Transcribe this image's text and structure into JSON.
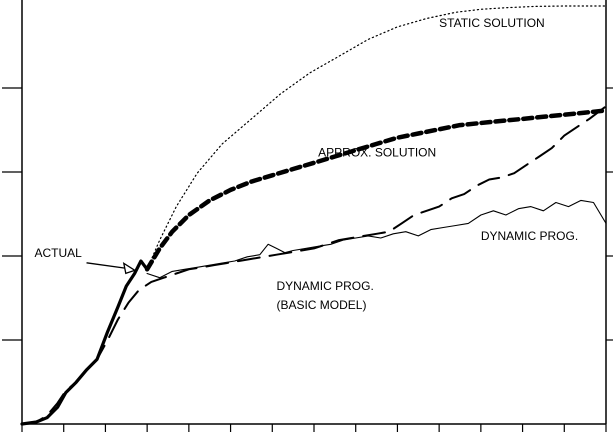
{
  "chart_data": {
    "type": "line",
    "title": "",
    "xlabel": "",
    "ylabel": "",
    "xlim": [
      0,
      14
    ],
    "ylim": [
      0,
      100
    ],
    "grid": false,
    "legend": "none",
    "series": [
      {
        "name": "ACTUAL",
        "style": "thick-solid",
        "x": [
          0,
          0.35,
          0.6,
          0.85,
          1.05,
          1.3,
          1.55,
          1.8,
          2.05,
          2.3,
          2.5,
          2.7,
          2.85,
          3.0
        ],
        "y": [
          0,
          0.5,
          1.5,
          4,
          7.5,
          10,
          13,
          15.5,
          22,
          28,
          33,
          36,
          39,
          37
        ]
      },
      {
        "name": "STATIC SOLUTION",
        "style": "dotted",
        "x": [
          3.0,
          3.3,
          3.7,
          4.2,
          4.8,
          5.5,
          6.2,
          6.9,
          7.6,
          8.3,
          9.0,
          9.7,
          10.4,
          11.0,
          11.6,
          12.3,
          13.0,
          14.0
        ],
        "y": [
          37,
          44,
          52,
          60,
          67,
          73,
          79,
          84,
          88,
          92,
          95,
          97,
          98.5,
          99.2,
          99.6,
          99.9,
          100,
          100
        ]
      },
      {
        "name": "APPROX. SOLUTION",
        "style": "thick-dashed",
        "x": [
          3.0,
          3.3,
          3.6,
          4.0,
          4.5,
          5.0,
          5.5,
          6.0,
          6.5,
          7.0,
          7.5,
          8.0,
          8.5,
          9.0,
          9.5,
          10.0,
          10.5,
          11.0,
          11.5,
          12.0,
          12.5,
          13.0,
          13.5,
          14.0
        ],
        "y": [
          37,
          42,
          46,
          50,
          53.5,
          56,
          58,
          59.5,
          61,
          62.5,
          64,
          65.5,
          67,
          68.5,
          69.5,
          70.5,
          71.5,
          72,
          72.5,
          73,
          73.5,
          74,
          74.5,
          75
        ]
      },
      {
        "name": "DYNAMIC PROG.",
        "style": "thin-solid",
        "x": [
          3.0,
          3.3,
          3.6,
          3.9,
          4.2,
          4.5,
          4.8,
          5.1,
          5.4,
          5.7,
          5.9,
          6.1,
          6.3,
          6.5,
          6.8,
          7.1,
          7.4,
          7.7,
          8.0,
          8.3,
          8.6,
          8.9,
          9.2,
          9.5,
          9.8,
          10.1,
          10.4,
          10.7,
          11.0,
          11.3,
          11.6,
          11.9,
          12.2,
          12.5,
          12.8,
          13.1,
          13.4,
          13.7,
          14.0
        ],
        "y": [
          36,
          35,
          36.5,
          37,
          37.5,
          38,
          38.5,
          39,
          40,
          40.5,
          43,
          42,
          41,
          41.5,
          42,
          42.5,
          43,
          44,
          44.5,
          45,
          44.5,
          45.5,
          46,
          45,
          46.5,
          47,
          47.5,
          48,
          50,
          51,
          50,
          51.5,
          52,
          51,
          53,
          52,
          53.5,
          53,
          48
        ]
      },
      {
        "name": "DYNAMIC PROG. (BASIC MODEL)",
        "style": "long-dash",
        "x": [
          0,
          0.35,
          0.6,
          0.85,
          1.05,
          1.3,
          1.55,
          1.8,
          2.05,
          2.3,
          2.55,
          2.8,
          3.1,
          3.4,
          3.7,
          4.0,
          4.3,
          4.6,
          4.9,
          5.2,
          5.5,
          5.8,
          6.1,
          6.4,
          6.7,
          7.0,
          7.3,
          7.6,
          7.9,
          8.2,
          8.5,
          8.8,
          9.1,
          9.4,
          9.7,
          10.0,
          10.3,
          10.6,
          10.9,
          11.2,
          11.5,
          11.8,
          12.1,
          12.4,
          12.7,
          13.0,
          13.3,
          13.6,
          14.0
        ],
        "y": [
          0,
          0.5,
          2,
          5,
          8,
          10,
          13,
          15.5,
          20,
          25,
          29,
          32,
          34,
          35,
          36,
          37,
          37.5,
          38,
          38.5,
          39,
          39.5,
          40,
          40.5,
          41,
          41.5,
          42,
          43,
          44,
          44.5,
          45,
          45.5,
          46,
          48,
          50,
          51,
          52,
          54,
          55,
          57,
          58.5,
          59,
          60,
          62,
          64,
          66,
          69,
          71,
          73,
          76
        ]
      }
    ],
    "annotations": [
      {
        "text": "STATIC SOLUTION",
        "x": 10.0,
        "y": 95
      },
      {
        "text": "APPROX. SOLUTION",
        "x": 7.1,
        "y": 64
      },
      {
        "text": "DYNAMIC PROG.",
        "x": 11.0,
        "y": 44
      },
      {
        "text": "DYNAMIC PROG.",
        "x": 6.1,
        "y": 32
      },
      {
        "text": "(BASIC MODEL)",
        "x": 6.1,
        "y": 27.5
      },
      {
        "text": "ACTUAL",
        "x": 0.3,
        "y": 40,
        "arrow_to": [
          2.8,
          37
        ]
      }
    ]
  }
}
